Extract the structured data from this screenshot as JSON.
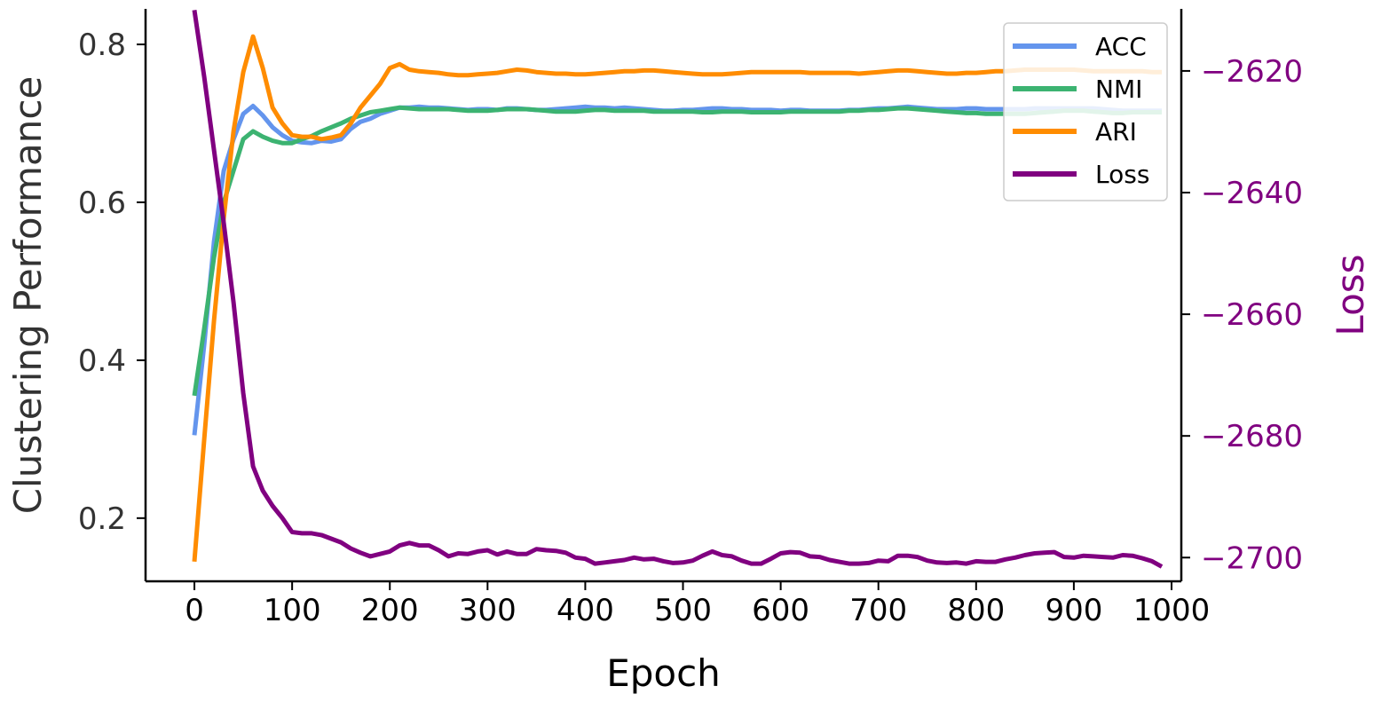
{
  "chart_data": {
    "type": "line",
    "title": "",
    "xlabel": "Epoch",
    "ylabel": "Clustering Performance",
    "y2label": "Loss",
    "xlim": [
      -50,
      1010
    ],
    "ylim": [
      0.12,
      0.845
    ],
    "y2lim": [
      -2703.9,
      -2609.8
    ],
    "xticks": [
      0,
      100,
      200,
      300,
      400,
      500,
      600,
      700,
      800,
      900,
      1000
    ],
    "yticks": [
      0.2,
      0.4,
      0.6,
      0.8
    ],
    "y2ticks": [
      -2700,
      -2680,
      -2660,
      -2640,
      -2620
    ],
    "ytick_labels": [
      "0.2",
      "0.4",
      "0.6",
      "0.8"
    ],
    "y2tick_labels": [
      "−2700",
      "−2680",
      "−2660",
      "−2640",
      "−2620"
    ],
    "grid": false,
    "legend_position": "top-right",
    "x": [
      0,
      10,
      20,
      30,
      40,
      50,
      60,
      70,
      80,
      90,
      100,
      110,
      120,
      130,
      140,
      150,
      160,
      170,
      180,
      190,
      200,
      210,
      220,
      230,
      240,
      250,
      260,
      270,
      280,
      290,
      300,
      310,
      320,
      330,
      340,
      350,
      360,
      370,
      380,
      390,
      400,
      410,
      420,
      430,
      440,
      450,
      460,
      470,
      480,
      490,
      500,
      510,
      520,
      530,
      540,
      550,
      560,
      570,
      580,
      590,
      600,
      610,
      620,
      630,
      640,
      650,
      660,
      670,
      680,
      690,
      700,
      710,
      720,
      730,
      740,
      750,
      760,
      770,
      780,
      790,
      800,
      810,
      820,
      830,
      840,
      850,
      860,
      870,
      880,
      890,
      900,
      910,
      920,
      930,
      940,
      950,
      960,
      970,
      980,
      990
    ],
    "series": [
      {
        "name": "ACC",
        "axis": "left",
        "color": "#6495ED",
        "values": [
          0.305,
          0.42,
          0.55,
          0.64,
          0.68,
          0.712,
          0.722,
          0.71,
          0.695,
          0.685,
          0.678,
          0.676,
          0.675,
          0.678,
          0.677,
          0.68,
          0.693,
          0.702,
          0.706,
          0.712,
          0.716,
          0.72,
          0.72,
          0.721,
          0.72,
          0.72,
          0.719,
          0.718,
          0.717,
          0.718,
          0.718,
          0.717,
          0.719,
          0.719,
          0.718,
          0.717,
          0.717,
          0.718,
          0.719,
          0.72,
          0.721,
          0.72,
          0.72,
          0.719,
          0.72,
          0.719,
          0.718,
          0.717,
          0.716,
          0.716,
          0.717,
          0.717,
          0.718,
          0.719,
          0.719,
          0.718,
          0.718,
          0.717,
          0.717,
          0.717,
          0.716,
          0.717,
          0.717,
          0.716,
          0.716,
          0.716,
          0.716,
          0.717,
          0.717,
          0.718,
          0.719,
          0.719,
          0.72,
          0.721,
          0.72,
          0.719,
          0.718,
          0.718,
          0.718,
          0.719,
          0.719,
          0.718,
          0.718,
          0.718,
          0.718,
          0.718,
          0.719,
          0.719,
          0.719,
          0.719,
          0.719,
          0.719,
          0.719,
          0.718,
          0.717,
          0.716,
          0.716,
          0.716,
          0.716,
          0.716
        ]
      },
      {
        "name": "NMI",
        "axis": "left",
        "color": "#3CB371",
        "values": [
          0.355,
          0.44,
          0.53,
          0.6,
          0.64,
          0.68,
          0.69,
          0.683,
          0.678,
          0.675,
          0.675,
          0.68,
          0.684,
          0.69,
          0.695,
          0.7,
          0.706,
          0.71,
          0.714,
          0.716,
          0.718,
          0.72,
          0.719,
          0.718,
          0.718,
          0.718,
          0.718,
          0.717,
          0.716,
          0.716,
          0.716,
          0.717,
          0.718,
          0.718,
          0.718,
          0.717,
          0.716,
          0.715,
          0.715,
          0.715,
          0.716,
          0.717,
          0.717,
          0.716,
          0.716,
          0.716,
          0.716,
          0.715,
          0.715,
          0.715,
          0.715,
          0.715,
          0.714,
          0.714,
          0.715,
          0.715,
          0.715,
          0.714,
          0.714,
          0.714,
          0.714,
          0.715,
          0.715,
          0.715,
          0.715,
          0.715,
          0.715,
          0.716,
          0.716,
          0.717,
          0.717,
          0.718,
          0.719,
          0.719,
          0.718,
          0.717,
          0.716,
          0.715,
          0.714,
          0.713,
          0.713,
          0.712,
          0.712,
          0.712,
          0.712,
          0.712,
          0.713,
          0.714,
          0.715,
          0.716,
          0.716,
          0.716,
          0.715,
          0.714,
          0.713,
          0.713,
          0.714,
          0.714,
          0.714,
          0.714
        ]
      },
      {
        "name": "ARI",
        "axis": "left",
        "color": "#FF8C00",
        "values": [
          0.145,
          0.3,
          0.45,
          0.58,
          0.69,
          0.765,
          0.81,
          0.77,
          0.72,
          0.7,
          0.685,
          0.683,
          0.683,
          0.68,
          0.682,
          0.685,
          0.7,
          0.72,
          0.735,
          0.75,
          0.77,
          0.775,
          0.768,
          0.766,
          0.765,
          0.764,
          0.762,
          0.761,
          0.761,
          0.762,
          0.763,
          0.764,
          0.766,
          0.768,
          0.767,
          0.765,
          0.764,
          0.763,
          0.763,
          0.762,
          0.762,
          0.763,
          0.764,
          0.765,
          0.766,
          0.766,
          0.767,
          0.767,
          0.766,
          0.765,
          0.764,
          0.763,
          0.762,
          0.762,
          0.762,
          0.763,
          0.764,
          0.765,
          0.765,
          0.765,
          0.765,
          0.765,
          0.765,
          0.764,
          0.764,
          0.764,
          0.764,
          0.764,
          0.763,
          0.764,
          0.765,
          0.766,
          0.767,
          0.767,
          0.766,
          0.765,
          0.764,
          0.763,
          0.763,
          0.764,
          0.764,
          0.765,
          0.766,
          0.766,
          0.767,
          0.768,
          0.768,
          0.768,
          0.768,
          0.768,
          0.768,
          0.767,
          0.766,
          0.766,
          0.766,
          0.766,
          0.766,
          0.766,
          0.765,
          0.765
        ]
      },
      {
        "name": "Loss",
        "axis": "right",
        "color": "#800080",
        "values": [
          -2610.0,
          -2621,
          -2633,
          -2645,
          -2658,
          -2673,
          -2685,
          -2689,
          -2691.5,
          -2693.5,
          -2695.8,
          -2696.0,
          -2696.0,
          -2696.3,
          -2696.9,
          -2697.5,
          -2698.5,
          -2699.2,
          -2699.8,
          -2699.4,
          -2699.0,
          -2698.0,
          -2697.6,
          -2698.0,
          -2698.0,
          -2698.8,
          -2699.8,
          -2699.3,
          -2699.4,
          -2699.0,
          -2698.8,
          -2699.5,
          -2699.0,
          -2699.4,
          -2699.4,
          -2698.6,
          -2698.8,
          -2698.9,
          -2699.2,
          -2700.0,
          -2700.2,
          -2701.0,
          -2700.8,
          -2700.6,
          -2700.4,
          -2700.0,
          -2700.3,
          -2700.2,
          -2700.6,
          -2700.9,
          -2700.8,
          -2700.5,
          -2699.7,
          -2699.0,
          -2699.6,
          -2699.8,
          -2700.5,
          -2701.0,
          -2701.0,
          -2700.2,
          -2699.3,
          -2699.1,
          -2699.2,
          -2699.8,
          -2699.9,
          -2700.4,
          -2700.7,
          -2701.0,
          -2701.0,
          -2700.9,
          -2700.5,
          -2700.6,
          -2699.7,
          -2699.7,
          -2699.9,
          -2700.5,
          -2700.8,
          -2700.9,
          -2700.8,
          -2701.0,
          -2700.6,
          -2700.7,
          -2700.7,
          -2700.3,
          -2700.0,
          -2699.6,
          -2699.3,
          -2699.2,
          -2699.1,
          -2699.9,
          -2700.0,
          -2699.7,
          -2699.8,
          -2699.9,
          -2700.0,
          -2699.6,
          -2699.7,
          -2700.1,
          -2700.6,
          -2701.5
        ]
      }
    ]
  }
}
